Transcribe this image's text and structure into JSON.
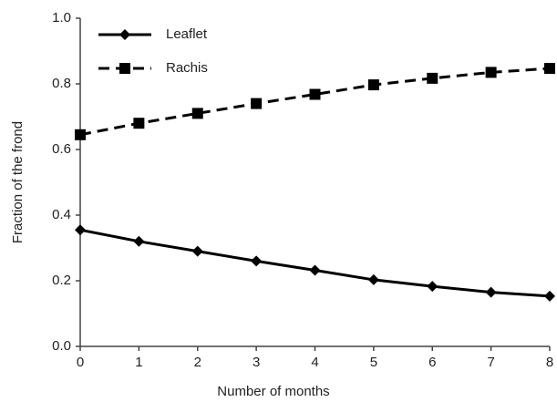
{
  "chart_data": {
    "type": "line",
    "x_label": "Number of months",
    "y_label": "Fraction of the frond",
    "x": [
      0,
      1,
      2,
      3,
      4,
      5,
      6,
      7,
      8
    ],
    "series": [
      {
        "name": "Leaflet",
        "color": "#000000",
        "marker": "diamond",
        "line_style": "solid",
        "values": [
          0.355,
          0.32,
          0.29,
          0.26,
          0.232,
          0.203,
          0.183,
          0.165,
          0.153
        ]
      },
      {
        "name": "Rachis",
        "color": "#000000",
        "marker": "square",
        "line_style": "dashed",
        "values": [
          0.645,
          0.68,
          0.71,
          0.74,
          0.768,
          0.797,
          0.817,
          0.835,
          0.847
        ]
      }
    ],
    "xlim": [
      0,
      8
    ],
    "xticks": [
      0,
      1,
      2,
      3,
      4,
      5,
      6,
      7,
      8
    ],
    "ylim": [
      0,
      1
    ],
    "yticks": [
      {
        "value": 0,
        "label": "0.0"
      },
      0.2,
      0.4,
      0.6,
      0.8,
      {
        "value": 1,
        "label": "1.0"
      }
    ],
    "legend": "top-left",
    "grid": false
  }
}
